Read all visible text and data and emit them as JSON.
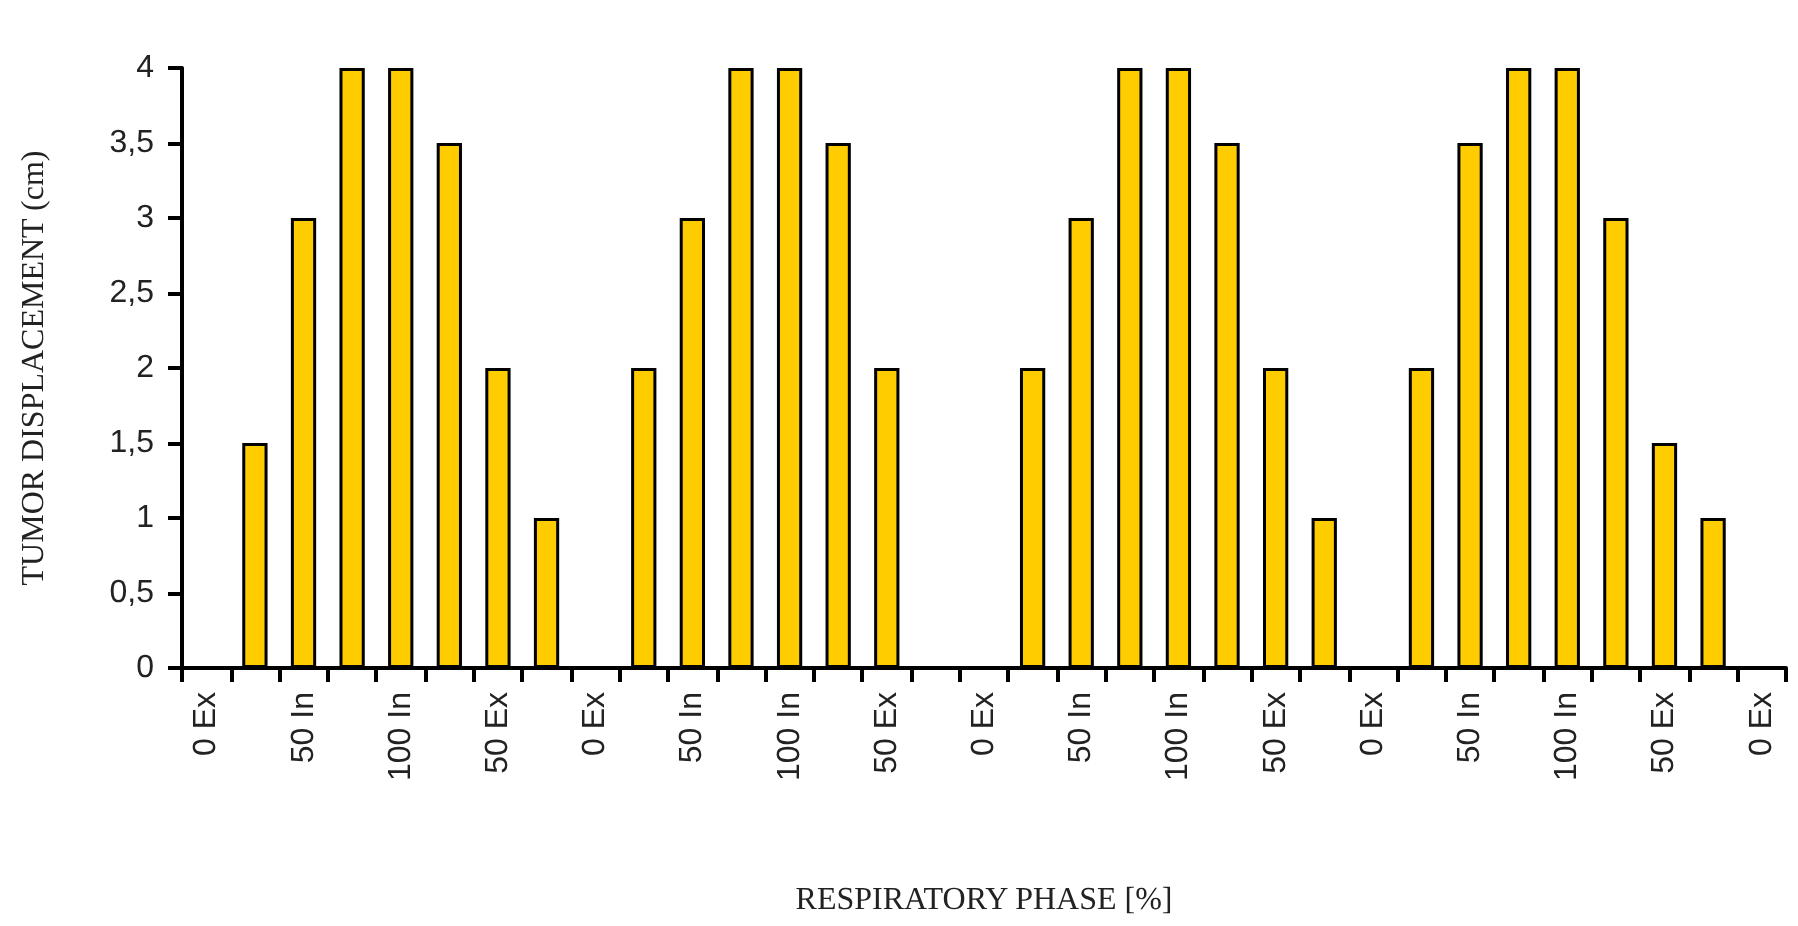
{
  "chart_data": {
    "type": "bar",
    "xlabel": "RESPIRATORY PHASE [%]",
    "ylabel": "TUMOR DISPLACEMENT (cm)",
    "categories": [
      "0 Ex",
      null,
      "50 In",
      null,
      "100 In",
      null,
      "50 Ex",
      null,
      "0 Ex",
      null,
      "50 In",
      null,
      "100 In",
      null,
      "50 Ex",
      null,
      "0 Ex",
      null,
      "50 In",
      null,
      "100 In",
      null,
      "50 Ex",
      null,
      "0 Ex",
      null,
      "50 In",
      null,
      "100 In",
      null,
      "50 Ex",
      null,
      "0 Ex"
    ],
    "values": [
      null,
      1.5,
      3,
      4,
      4,
      3.5,
      2,
      1,
      null,
      2,
      3,
      4,
      4,
      3.5,
      2,
      null,
      null,
      2,
      3,
      4,
      4,
      3.5,
      2,
      1,
      null,
      2,
      3.5,
      4,
      4,
      3,
      1.5,
      1,
      null
    ],
    "color": "#ffcc00",
    "ylim": [
      0,
      4
    ],
    "yticks": [
      0,
      {
        "value": 0.5,
        "label": "0,5"
      },
      1,
      {
        "value": 1.5,
        "label": "1,5"
      },
      2,
      {
        "value": 2.5,
        "label": "2,5"
      },
      3,
      {
        "value": 3.5,
        "label": "3,5"
      },
      4
    ],
    "grid": false
  }
}
